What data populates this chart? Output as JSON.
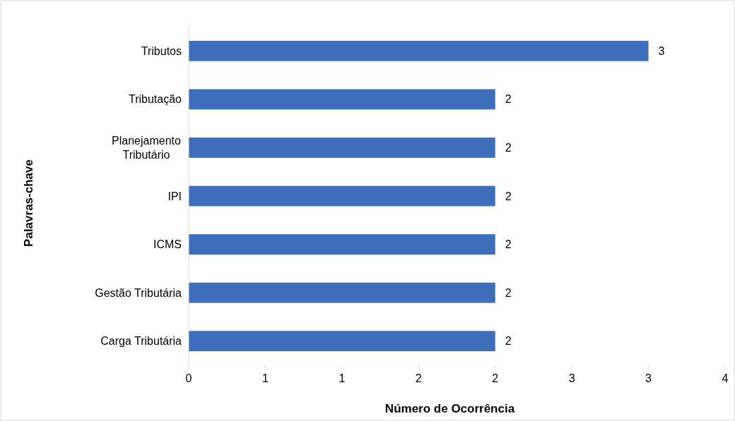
{
  "chart_data": {
    "type": "bar",
    "orientation": "horizontal",
    "xlabel": "Número de Ocorrência",
    "ylabel": "Palavras-chave",
    "categories": [
      "Tributos",
      "Tributação",
      "Planejamento Tributário",
      "IPI",
      "ICMS",
      "Gestão Tributária",
      "Carga Tributária"
    ],
    "values": [
      3,
      2,
      2,
      2,
      2,
      2,
      2
    ],
    "color": "#3f6fba",
    "data_labels": true,
    "xlim": [
      0,
      3.5
    ],
    "xticks": [
      0,
      {
        "value": 0.5,
        "label": "1"
      },
      1,
      {
        "value": 1.5,
        "label": "2"
      },
      2,
      {
        "value": 2.5,
        "label": "3"
      },
      3,
      {
        "value": 3.5,
        "label": "4"
      }
    ]
  }
}
